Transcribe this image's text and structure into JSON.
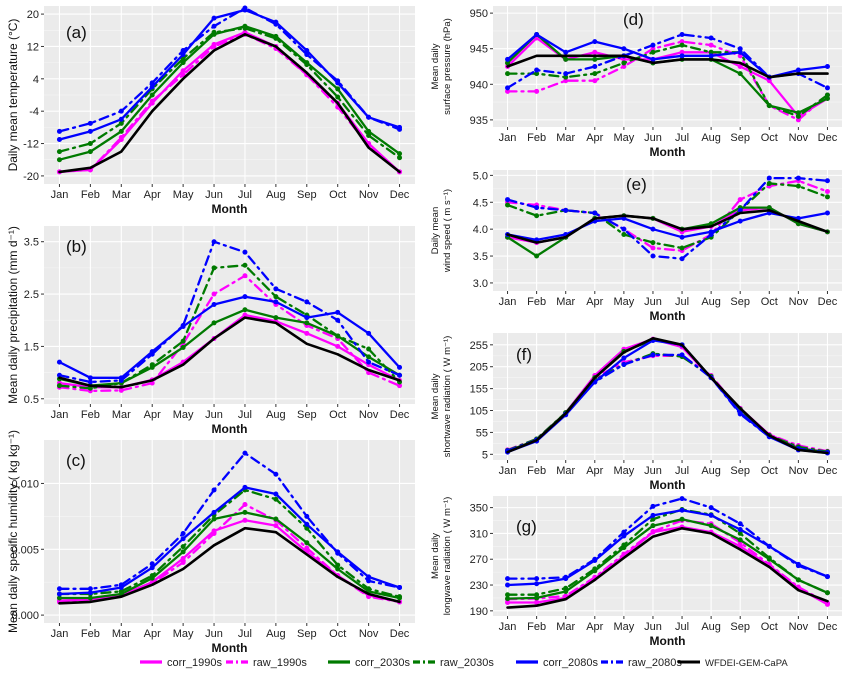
{
  "legend": {
    "items": [
      {
        "label": "corr_1990s",
        "color": "#ff00ff",
        "dash": "solid"
      },
      {
        "label": "raw_1990s",
        "color": "#ff00ff",
        "dash": "dashdot"
      },
      {
        "label": "corr_2030s",
        "color": "#007a00",
        "dash": "solid"
      },
      {
        "label": "raw_2030s",
        "color": "#007a00",
        "dash": "dashdot"
      },
      {
        "label": "corr_2080s",
        "color": "#0000ff",
        "dash": "solid"
      },
      {
        "label": "raw_2080s",
        "color": "#0000ff",
        "dash": "dashdot"
      },
      {
        "label": "WFDEI-GEM-CaPA",
        "color": "#000000",
        "dash": "solid"
      }
    ]
  },
  "chart_data": [
    {
      "type": "line",
      "panel_label": "(a)",
      "xlabel": "Month",
      "ylabel": "Daily mean temperature (°C)",
      "categories": [
        "Jan",
        "Feb",
        "Mar",
        "Apr",
        "May",
        "Jun",
        "Jul",
        "Aug",
        "Sep",
        "Oct",
        "Nov",
        "Dec"
      ],
      "ylim": [
        -22,
        22
      ],
      "yticks": [
        -20,
        -12,
        -4,
        4,
        12,
        20
      ],
      "series": [
        {
          "name": "corr_1990s",
          "values": [
            -19,
            -18.5,
            -11,
            -2,
            6,
            12.5,
            15.5,
            12,
            5,
            -2,
            -12,
            -19
          ]
        },
        {
          "name": "raw_1990s",
          "values": [
            -19,
            -18.5,
            -10.5,
            -1.5,
            5,
            12,
            15,
            11.5,
            5,
            -3,
            -12.5,
            -19
          ]
        },
        {
          "name": "corr_2030s",
          "values": [
            -16,
            -14,
            -9,
            0,
            8,
            15,
            17,
            14.5,
            8,
            1.5,
            -9,
            -14.5
          ]
        },
        {
          "name": "raw_2030s",
          "values": [
            -14,
            -12,
            -7,
            1.5,
            9,
            15.5,
            16.5,
            14,
            7.5,
            -0.5,
            -10,
            -15.5
          ]
        },
        {
          "name": "corr_2080s",
          "values": [
            -11,
            -9,
            -6,
            2,
            10,
            19,
            21,
            18,
            11,
            3,
            -5.5,
            -8
          ]
        },
        {
          "name": "raw_2080s",
          "values": [
            -9,
            -7,
            -4,
            3,
            11,
            17,
            21.5,
            17.5,
            10,
            3.5,
            -5.5,
            -8.5
          ]
        },
        {
          "name": "WFDEI-GEM-CaPA",
          "values": [
            -19,
            -18,
            -14,
            -4,
            4,
            11,
            15,
            12,
            5.5,
            -2,
            -13,
            -19
          ]
        }
      ]
    },
    {
      "type": "line",
      "panel_label": "(b)",
      "xlabel": "Month",
      "ylabel": "Mean daily precipitation (mm d⁻¹)",
      "categories": [
        "Jan",
        "Feb",
        "Mar",
        "Apr",
        "May",
        "Jun",
        "Jul",
        "Aug",
        "Sep",
        "Oct",
        "Nov",
        "Dec"
      ],
      "ylim": [
        0.4,
        3.8
      ],
      "yticks": [
        0.5,
        1.5,
        2.5,
        3.5
      ],
      "series": [
        {
          "name": "corr_1990s",
          "values": [
            0.8,
            0.72,
            0.72,
            0.86,
            1.2,
            1.65,
            2.1,
            1.98,
            1.75,
            1.5,
            1.15,
            0.85
          ]
        },
        {
          "name": "raw_1990s",
          "values": [
            0.72,
            0.65,
            0.66,
            0.8,
            1.55,
            2.5,
            2.85,
            2.3,
            1.9,
            1.65,
            1.0,
            0.75
          ]
        },
        {
          "name": "corr_2030s",
          "values": [
            0.88,
            0.75,
            0.8,
            1.1,
            1.48,
            1.95,
            2.2,
            2.05,
            1.95,
            1.7,
            1.3,
            0.95
          ]
        },
        {
          "name": "raw_2030s",
          "values": [
            0.75,
            0.7,
            0.8,
            1.15,
            1.6,
            3.0,
            3.05,
            2.45,
            2.1,
            1.7,
            1.45,
            0.82
          ]
        },
        {
          "name": "corr_2080s",
          "values": [
            1.2,
            0.9,
            0.9,
            1.4,
            1.88,
            2.3,
            2.45,
            2.35,
            2.05,
            2.15,
            1.75,
            1.1
          ]
        },
        {
          "name": "raw_2080s",
          "values": [
            0.95,
            0.82,
            0.85,
            1.35,
            1.9,
            3.5,
            3.3,
            2.6,
            2.35,
            2.0,
            1.2,
            0.95
          ]
        },
        {
          "name": "WFDEI-GEM-CaPA",
          "values": [
            0.9,
            0.75,
            0.72,
            0.85,
            1.15,
            1.65,
            2.05,
            1.95,
            1.55,
            1.35,
            1.05,
            0.85
          ]
        }
      ]
    },
    {
      "type": "line",
      "panel_label": "(c)",
      "xlabel": "Month",
      "ylabel": "Mean daily specific humidity ( kg kg⁻¹)",
      "categories": [
        "Jan",
        "Feb",
        "Mar",
        "Apr",
        "May",
        "Jun",
        "Jul",
        "Aug",
        "Sep",
        "Oct",
        "Nov",
        "Dec"
      ],
      "ylim": [
        -0.0006,
        0.0133
      ],
      "yticks": [
        "0.000",
        "0.005",
        "0.010"
      ],
      "series": [
        {
          "name": "corr_1990s",
          "values": [
            0.0011,
            0.0012,
            0.0015,
            0.0025,
            0.0043,
            0.0064,
            0.0072,
            0.0068,
            0.0048,
            0.003,
            0.0015,
            0.001
          ]
        },
        {
          "name": "raw_1990s",
          "values": [
            0.001,
            0.0011,
            0.0015,
            0.0024,
            0.004,
            0.0062,
            0.0084,
            0.0072,
            0.0051,
            0.003,
            0.0014,
            0.001
          ]
        },
        {
          "name": "corr_2030s",
          "values": [
            0.0013,
            0.0013,
            0.0016,
            0.0028,
            0.0048,
            0.0073,
            0.0078,
            0.0073,
            0.0055,
            0.0035,
            0.0018,
            0.0013
          ]
        },
        {
          "name": "raw_2030s",
          "values": [
            0.0016,
            0.0016,
            0.0018,
            0.003,
            0.0052,
            0.0076,
            0.0095,
            0.0088,
            0.0066,
            0.0038,
            0.002,
            0.0014
          ]
        },
        {
          "name": "corr_2080s",
          "values": [
            0.0016,
            0.0017,
            0.0021,
            0.0036,
            0.0058,
            0.0078,
            0.0097,
            0.0092,
            0.0069,
            0.0048,
            0.0029,
            0.0021
          ]
        },
        {
          "name": "raw_2080s",
          "values": [
            0.002,
            0.002,
            0.0023,
            0.0039,
            0.0062,
            0.0095,
            0.0123,
            0.0107,
            0.0075,
            0.0047,
            0.0026,
            0.0021
          ]
        },
        {
          "name": "WFDEI-GEM-CaPA",
          "values": [
            0.0009,
            0.001,
            0.0014,
            0.0023,
            0.0035,
            0.0053,
            0.0066,
            0.0063,
            0.0046,
            0.0029,
            0.0016,
            0.001
          ]
        }
      ]
    },
    {
      "type": "line",
      "panel_label": "(d)",
      "xlabel": "Month",
      "ylabel": "Mean daily surface pressure (hPa)",
      "categories": [
        "Jan",
        "Feb",
        "Mar",
        "Apr",
        "May",
        "Jun",
        "Jul",
        "Aug",
        "Sep",
        "Oct",
        "Nov",
        "Dec"
      ],
      "ylim": [
        934,
        951
      ],
      "yticks": [
        935,
        940,
        945,
        950
      ],
      "series": [
        {
          "name": "corr_1990s",
          "values": [
            942.5,
            946.5,
            943.5,
            944.5,
            943.5,
            943.5,
            944.5,
            944.5,
            942.5,
            940.5,
            935.5,
            938
          ]
        },
        {
          "name": "raw_1990s",
          "values": [
            939,
            939,
            940.5,
            940.5,
            942.5,
            945,
            946,
            945.5,
            944,
            937,
            935,
            938.5
          ]
        },
        {
          "name": "corr_2030s",
          "values": [
            943,
            947,
            943.5,
            943.5,
            944,
            943,
            943.5,
            943.5,
            941.5,
            937,
            936,
            938
          ]
        },
        {
          "name": "raw_2030s",
          "values": [
            941.5,
            941.5,
            941,
            941.5,
            943,
            944.5,
            945.5,
            944.5,
            944.5,
            937,
            935.5,
            938.5
          ]
        },
        {
          "name": "corr_2080s",
          "values": [
            943.5,
            947,
            944.5,
            946,
            945,
            943.5,
            944,
            944,
            944.5,
            941,
            942,
            942.5
          ]
        },
        {
          "name": "raw_2080s",
          "values": [
            939.5,
            942,
            941.5,
            942.5,
            944,
            945.5,
            947,
            946.5,
            945,
            941,
            941.5,
            939.5
          ]
        },
        {
          "name": "WFDEI-GEM-CaPA",
          "values": [
            942.5,
            944,
            944,
            944,
            944,
            943,
            943.5,
            943.5,
            943,
            941,
            941.5,
            941.5
          ]
        }
      ]
    },
    {
      "type": "line",
      "panel_label": "(e)",
      "xlabel": "Month",
      "ylabel": "Daily mean wind speed ( m s⁻¹)",
      "categories": [
        "Jan",
        "Feb",
        "Mar",
        "Apr",
        "May",
        "Jun",
        "Jul",
        "Aug",
        "Sep",
        "Oct",
        "Nov",
        "Dec"
      ],
      "ylim": [
        2.85,
        5.1
      ],
      "yticks": [
        "3.0",
        "3.5",
        "4.0",
        "4.5",
        "5.0"
      ],
      "series": [
        {
          "name": "corr_1990s",
          "values": [
            3.85,
            3.75,
            3.85,
            4.2,
            4.25,
            4.2,
            3.95,
            4.05,
            4.35,
            4.4,
            4.1,
            3.95
          ]
        },
        {
          "name": "raw_1990s",
          "values": [
            4.5,
            4.45,
            4.35,
            4.3,
            4.0,
            3.65,
            3.6,
            3.9,
            4.55,
            4.8,
            4.9,
            4.7
          ]
        },
        {
          "name": "corr_2030s",
          "values": [
            3.85,
            3.5,
            3.85,
            4.2,
            4.25,
            4.2,
            4.0,
            4.1,
            4.4,
            4.4,
            4.1,
            3.95
          ]
        },
        {
          "name": "raw_2030s",
          "values": [
            4.45,
            4.25,
            4.35,
            4.3,
            3.9,
            3.75,
            3.65,
            3.85,
            4.35,
            4.85,
            4.8,
            4.6
          ]
        },
        {
          "name": "corr_2080s",
          "values": [
            3.9,
            3.8,
            3.9,
            4.15,
            4.2,
            4.0,
            3.85,
            3.95,
            4.15,
            4.3,
            4.2,
            4.3
          ]
        },
        {
          "name": "raw_2080s",
          "values": [
            4.55,
            4.4,
            4.35,
            4.3,
            4.0,
            3.5,
            3.45,
            3.9,
            4.35,
            4.95,
            4.95,
            4.9
          ]
        },
        {
          "name": "WFDEI-GEM-CaPA",
          "values": [
            3.9,
            3.75,
            3.85,
            4.2,
            4.25,
            4.2,
            4.0,
            4.05,
            4.3,
            4.35,
            4.15,
            3.95
          ]
        }
      ]
    },
    {
      "type": "line",
      "panel_label": "(f)",
      "xlabel": "Month",
      "ylabel": "Mean daily shortwave radiation ( W m⁻¹)",
      "categories": [
        "Jan",
        "Feb",
        "Mar",
        "Apr",
        "May",
        "Jun",
        "Jul",
        "Aug",
        "Sep",
        "Oct",
        "Nov",
        "Dec"
      ],
      "ylim": [
        -8,
        282
      ],
      "yticks": [
        5,
        55,
        105,
        155,
        205,
        255
      ],
      "series": [
        {
          "name": "corr_1990s",
          "values": [
            12,
            38,
            100,
            185,
            245,
            268,
            250,
            180,
            110,
            50,
            20,
            10
          ]
        },
        {
          "name": "raw_1990s",
          "values": [
            15,
            40,
            100,
            180,
            215,
            230,
            230,
            185,
            105,
            50,
            25,
            12
          ]
        },
        {
          "name": "corr_2030s",
          "values": [
            12,
            38,
            100,
            180,
            240,
            266,
            255,
            180,
            108,
            48,
            18,
            10
          ]
        },
        {
          "name": "raw_2030s",
          "values": [
            14,
            40,
            100,
            175,
            210,
            235,
            228,
            183,
            100,
            48,
            22,
            11
          ]
        },
        {
          "name": "corr_2080s",
          "values": [
            10,
            35,
            95,
            170,
            225,
            265,
            255,
            180,
            100,
            45,
            15,
            8
          ]
        },
        {
          "name": "raw_2080s",
          "values": [
            13,
            38,
            97,
            170,
            210,
            232,
            232,
            180,
            97,
            45,
            18,
            9
          ]
        },
        {
          "name": "WFDEI-GEM-CaPA",
          "values": [
            10,
            37,
            98,
            180,
            238,
            270,
            255,
            180,
            110,
            48,
            15,
            8
          ]
        }
      ]
    },
    {
      "type": "line",
      "panel_label": "(g)",
      "xlabel": "Month",
      "ylabel": "Mean daily longwave radiation ( W m⁻¹)",
      "categories": [
        "Jan",
        "Feb",
        "Mar",
        "Apr",
        "May",
        "Jun",
        "Jul",
        "Aug",
        "Sep",
        "Oct",
        "Nov",
        "Dec"
      ],
      "ylim": [
        182,
        368
      ],
      "yticks": [
        190,
        230,
        270,
        310,
        350
      ],
      "series": [
        {
          "name": "corr_1990s",
          "values": [
            203,
            203,
            210,
            240,
            275,
            312,
            320,
            312,
            290,
            260,
            225,
            200
          ]
        },
        {
          "name": "raw_1990s",
          "values": [
            208,
            209,
            213,
            242,
            278,
            313,
            330,
            325,
            296,
            262,
            227,
            202
          ]
        },
        {
          "name": "corr_2030s",
          "values": [
            209,
            210,
            220,
            252,
            288,
            322,
            332,
            322,
            300,
            270,
            238,
            218
          ]
        },
        {
          "name": "raw_2030s",
          "values": [
            215,
            215,
            225,
            255,
            292,
            332,
            347,
            339,
            310,
            272,
            238,
            218
          ]
        },
        {
          "name": "corr_2080s",
          "values": [
            230,
            232,
            240,
            268,
            306,
            338,
            346,
            338,
            316,
            290,
            262,
            243
          ]
        },
        {
          "name": "raw_2080s",
          "values": [
            240,
            240,
            242,
            270,
            312,
            352,
            364,
            350,
            325,
            290,
            260,
            243
          ]
        },
        {
          "name": "WFDEI-GEM-CaPA",
          "values": [
            195,
            198,
            208,
            238,
            272,
            305,
            318,
            310,
            285,
            258,
            222,
            205
          ]
        }
      ]
    }
  ]
}
